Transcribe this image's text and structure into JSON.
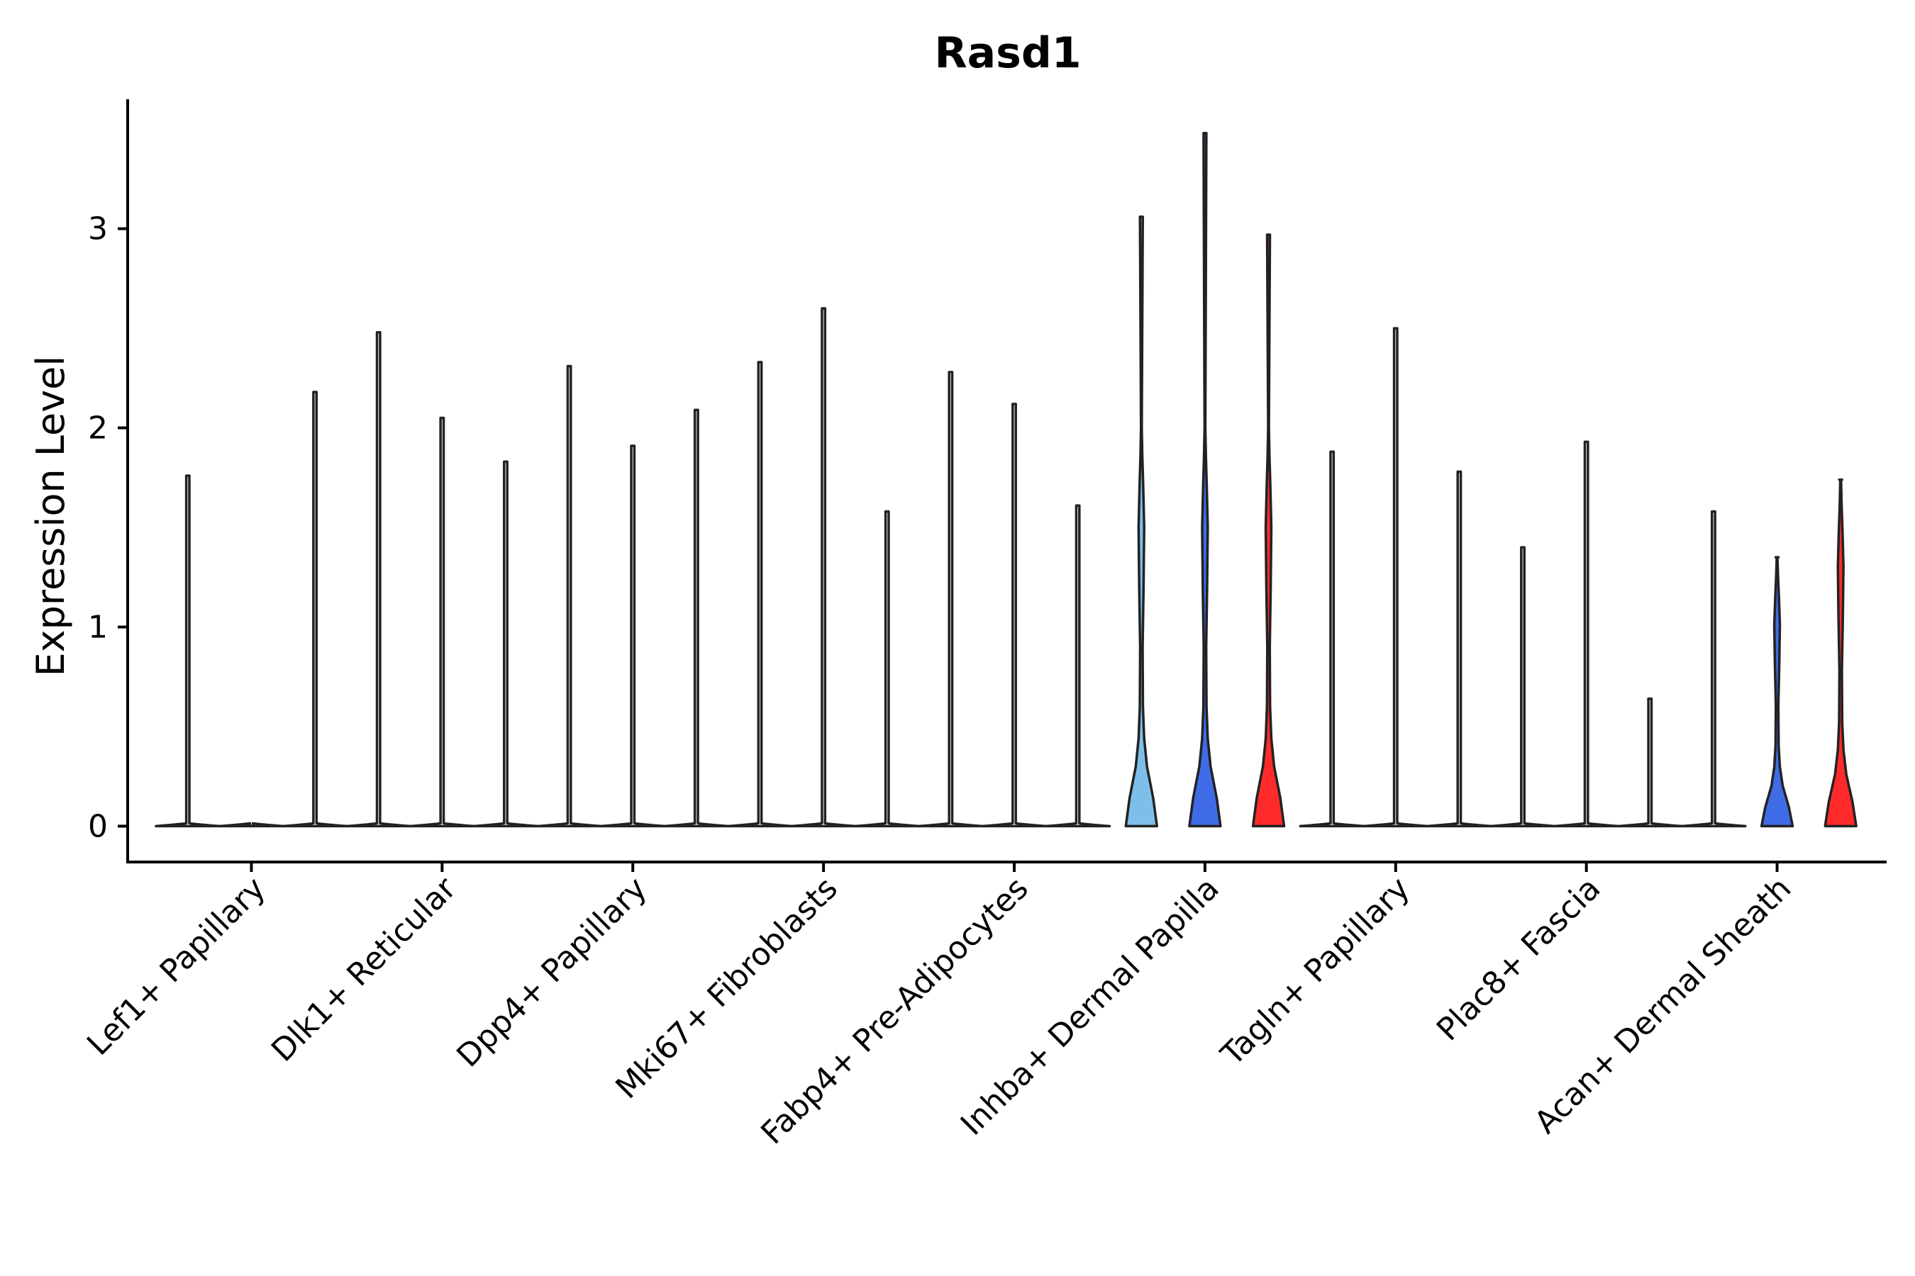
{
  "chart_data": {
    "type": "violin",
    "title": "Rasd1",
    "ylabel": "Expression Level",
    "xlabel": "",
    "ylim": [
      -0.18,
      3.65
    ],
    "yticks": [
      0,
      1,
      2,
      3
    ],
    "groups_per_category": 3,
    "series_colors": [
      "#7dbfea",
      "#3f6ce6",
      "#ff2a2a"
    ],
    "categories": [
      "Lef1+ Papillary",
      "Dlk1+ Reticular",
      "Dpp4+ Papillary",
      "Mki67+ Fibroblasts",
      "Fabp4+ Pre-Adipocytes",
      "Inhba+ Dermal Papilla",
      "Tagln+ Papillary",
      "Plac8+ Fascia",
      "Acan+ Dermal Sheath"
    ],
    "violins": [
      {
        "category": 0,
        "group": 0,
        "max": 1.76,
        "expressed": false
      },
      {
        "category": 0,
        "group": 1,
        "max": 0.0,
        "expressed": false
      },
      {
        "category": 0,
        "group": 2,
        "max": 2.18,
        "expressed": false
      },
      {
        "category": 1,
        "group": 0,
        "max": 2.48,
        "expressed": false
      },
      {
        "category": 1,
        "group": 1,
        "max": 2.05,
        "expressed": false
      },
      {
        "category": 1,
        "group": 2,
        "max": 1.83,
        "expressed": false
      },
      {
        "category": 2,
        "group": 0,
        "max": 2.31,
        "expressed": false
      },
      {
        "category": 2,
        "group": 1,
        "max": 1.91,
        "expressed": false
      },
      {
        "category": 2,
        "group": 2,
        "max": 2.09,
        "expressed": false
      },
      {
        "category": 3,
        "group": 0,
        "max": 2.33,
        "expressed": false
      },
      {
        "category": 3,
        "group": 1,
        "max": 2.6,
        "expressed": false
      },
      {
        "category": 3,
        "group": 2,
        "max": 1.58,
        "expressed": false
      },
      {
        "category": 4,
        "group": 0,
        "max": 2.28,
        "expressed": false
      },
      {
        "category": 4,
        "group": 1,
        "max": 2.12,
        "expressed": false
      },
      {
        "category": 4,
        "group": 2,
        "max": 1.61,
        "expressed": false
      },
      {
        "category": 5,
        "group": 0,
        "max": 3.06,
        "expressed": true
      },
      {
        "category": 5,
        "group": 1,
        "max": 3.48,
        "expressed": true
      },
      {
        "category": 5,
        "group": 2,
        "max": 2.97,
        "expressed": true
      },
      {
        "category": 6,
        "group": 0,
        "max": 1.88,
        "expressed": false
      },
      {
        "category": 6,
        "group": 1,
        "max": 2.5,
        "expressed": false
      },
      {
        "category": 6,
        "group": 2,
        "max": 1.78,
        "expressed": false
      },
      {
        "category": 7,
        "group": 0,
        "max": 1.4,
        "expressed": false
      },
      {
        "category": 7,
        "group": 1,
        "max": 1.93,
        "expressed": false
      },
      {
        "category": 7,
        "group": 2,
        "max": 0.64,
        "expressed": false
      },
      {
        "category": 8,
        "group": 0,
        "max": 1.58,
        "expressed": false
      },
      {
        "category": 8,
        "group": 1,
        "max": 1.35,
        "expressed": true
      },
      {
        "category": 8,
        "group": 2,
        "max": 1.74,
        "expressed": true
      }
    ]
  }
}
